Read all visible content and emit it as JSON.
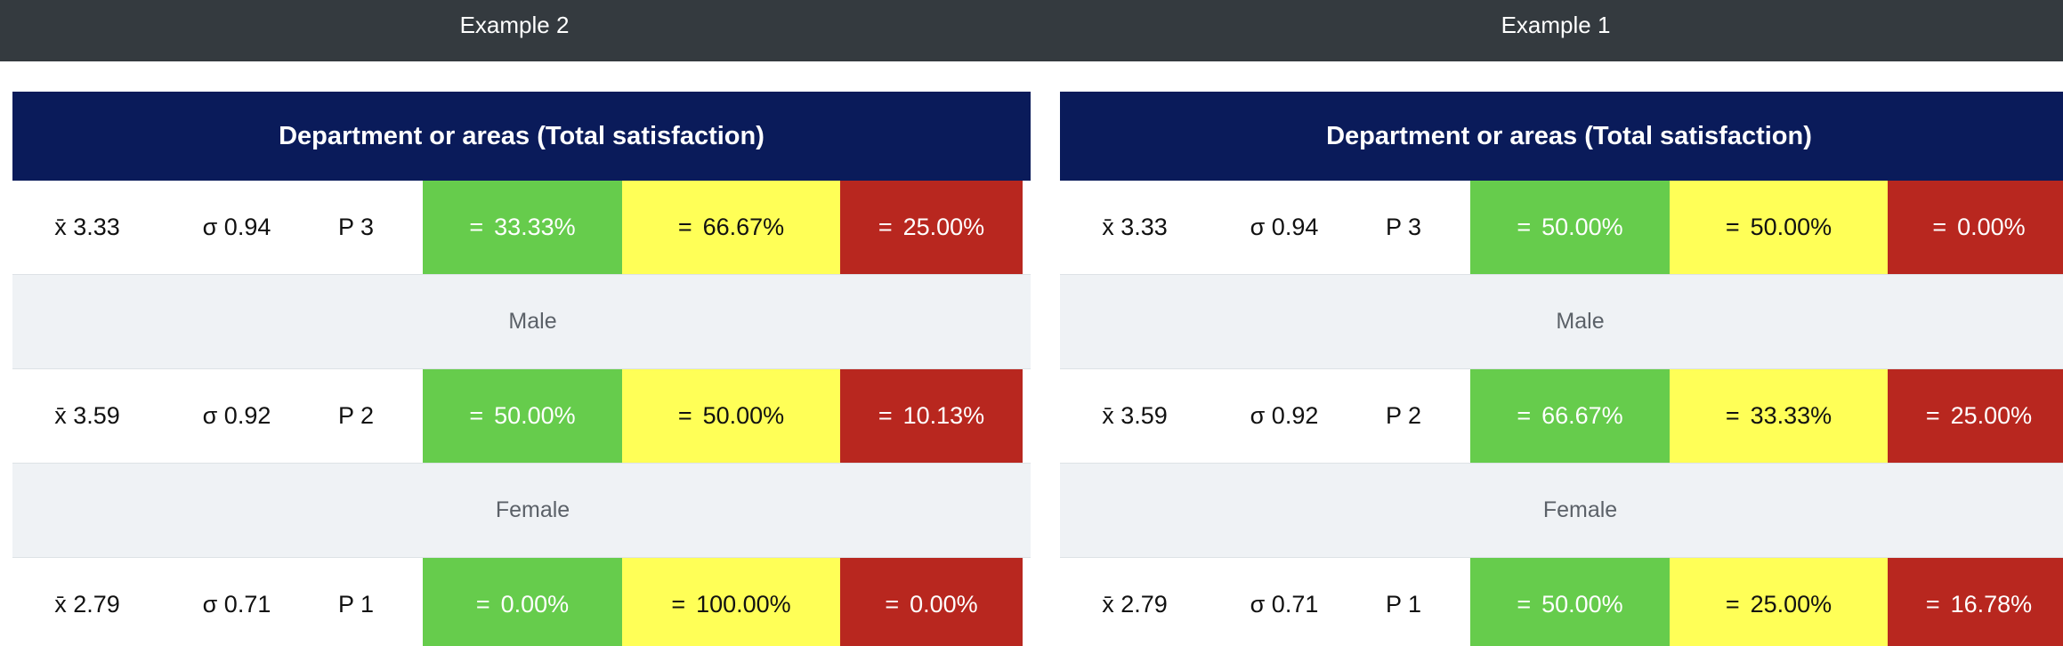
{
  "tabs": {
    "example2": "Example 2",
    "example1": "Example 1"
  },
  "colors": {
    "topbar": "#343a3f",
    "header": "#0a1b5a",
    "green": "#66cc4c",
    "yellow": "#ffff57",
    "red": "#b8271f",
    "group_band": "#eff2f5"
  },
  "panels": {
    "example2": {
      "header": "Department or areas (Total satisfaction)",
      "rows": [
        {
          "mean": "x̄ 3.33",
          "sd": "σ 0.94",
          "p": "P 3",
          "eq": "=",
          "green": "33.33%",
          "yellow": "66.67%",
          "red": "25.00%"
        },
        {
          "mean": "x̄ 3.59",
          "sd": "σ 0.92",
          "p": "P 2",
          "eq": "=",
          "green": "50.00%",
          "yellow": "50.00%",
          "red": "10.13%"
        },
        {
          "mean": "x̄ 2.79",
          "sd": "σ 0.71",
          "p": "P 1",
          "eq": "=",
          "green": "0.00%",
          "yellow": "100.00%",
          "red": "0.00%"
        }
      ],
      "groups": [
        "Male",
        "Female"
      ]
    },
    "example1": {
      "header": "Department or areas (Total satisfaction)",
      "rows": [
        {
          "mean": "x̄ 3.33",
          "sd": "σ 0.94",
          "p": "P 3",
          "eq": "=",
          "green": "50.00%",
          "yellow": "50.00%",
          "red": "0.00%"
        },
        {
          "mean": "x̄ 3.59",
          "sd": "σ 0.92",
          "p": "P 2",
          "eq": "=",
          "green": "66.67%",
          "yellow": "33.33%",
          "red": "25.00%"
        },
        {
          "mean": "x̄ 2.79",
          "sd": "σ 0.71",
          "p": "P 1",
          "eq": "=",
          "green": "50.00%",
          "yellow": "25.00%",
          "red": "16.78%"
        }
      ],
      "groups": [
        "Male",
        "Female"
      ]
    }
  }
}
